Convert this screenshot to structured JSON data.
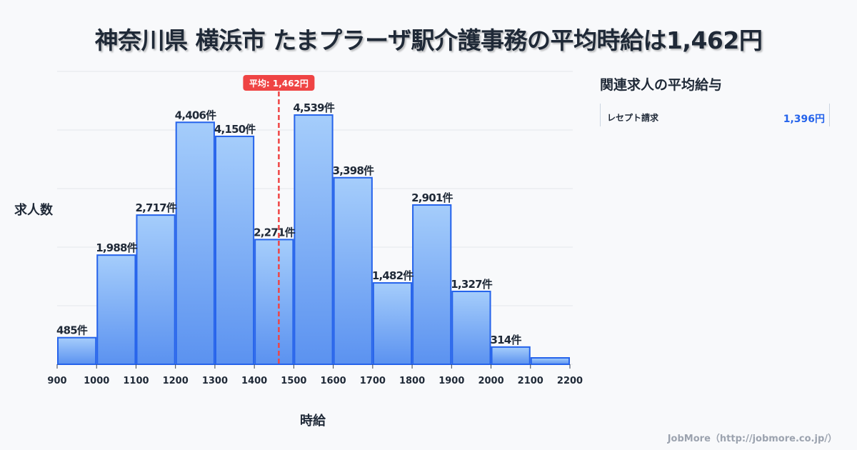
{
  "title": "神奈川県 横浜市 たまプラーザ駅介護事務の平均時給は1,462円",
  "chart_data": {
    "type": "bar",
    "title": "神奈川県 横浜市 たまプラーザ駅介護事務の平均時給は1,462円",
    "xlabel": "時給",
    "ylabel": "求人数",
    "bin_edges": [
      900,
      1000,
      1100,
      1200,
      1300,
      1400,
      1500,
      1600,
      1700,
      1800,
      1900,
      2000,
      2100,
      2200
    ],
    "x_ticks": [
      "900",
      "1000",
      "1100",
      "1200",
      "1300",
      "1400",
      "1500",
      "1600",
      "1700",
      "1800",
      "1900",
      "2000",
      "2100",
      "2200"
    ],
    "values": [
      485,
      1988,
      2717,
      4406,
      4150,
      2271,
      4539,
      3398,
      1482,
      2901,
      1327,
      314,
      117
    ],
    "labels": [
      "485件",
      "1,988件",
      "2,717件",
      "4,406件",
      "4,150件",
      "2,271件",
      "4,539件",
      "3,398件",
      "1,482件",
      "2,901件",
      "1,327件",
      "314件",
      null
    ],
    "xlim": [
      900,
      2200
    ],
    "ylim": [
      0,
      5333
    ],
    "grid": true,
    "average": {
      "value": 1462,
      "label": "平均: 1,462円"
    },
    "colors": {
      "bar_top": "#a5cdfb",
      "bar_bottom": "#5b92f0",
      "bar_border": "#2563eb",
      "avg_line": "#ef4444"
    }
  },
  "sidebar": {
    "title": "関連求人の平均給与",
    "items": [
      {
        "name": "レセプト請求",
        "value": "1,396円"
      }
    ]
  },
  "credit": "JobMore（http://jobmore.co.jp/）"
}
